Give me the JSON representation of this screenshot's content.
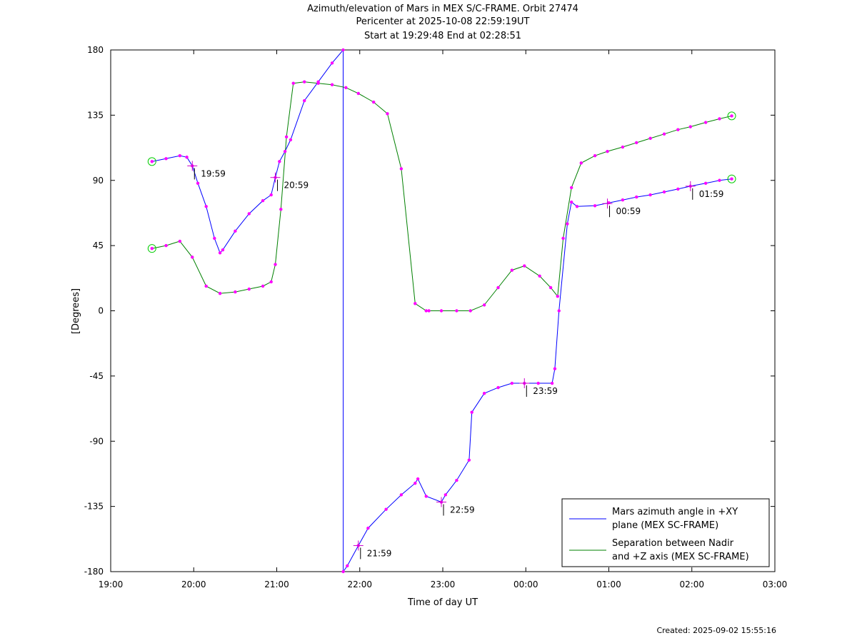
{
  "title_lines": [
    "Azimuth/elevation of Mars in MEX S/C-FRAME.  Orbit 27474",
    "Pericenter at 2025-10-08 22:59:19UT",
    "Start at 19:29:48 End at 02:28:51"
  ],
  "footer": "Created: 2025-09-02 15:55:16",
  "chart_data": {
    "type": "line",
    "xlabel": "Time of day UT",
    "ylabel": "[Degrees]",
    "xlim": [
      19.0,
      27.0
    ],
    "ylim": [
      -180,
      180
    ],
    "x_ticks": [
      {
        "value": 19,
        "label": "19:00"
      },
      {
        "value": 20,
        "label": "20:00"
      },
      {
        "value": 21,
        "label": "21:00"
      },
      {
        "value": 22,
        "label": "22:00"
      },
      {
        "value": 23,
        "label": "23:00"
      },
      {
        "value": 24,
        "label": "00:00"
      },
      {
        "value": 25,
        "label": "01:00"
      },
      {
        "value": 26,
        "label": "02:00"
      },
      {
        "value": 27,
        "label": "03:00"
      }
    ],
    "y_ticks": [
      180,
      135,
      90,
      45,
      0,
      -45,
      -90,
      -135,
      -180
    ],
    "legend_position": "bottom-right",
    "series": [
      {
        "name": "Mars azimuth angle in +XY plane (MEX SC-FRAME)",
        "legend_lines": [
          "Mars azimuth angle in +XY",
          "plane (MEX SC-FRAME)"
        ],
        "color": "#0000ff",
        "x": [
          19.497,
          19.667,
          19.833,
          19.917,
          19.983,
          20.05,
          20.15,
          20.25,
          20.317,
          20.35,
          20.5,
          20.667,
          20.833,
          20.933,
          20.983,
          21.033,
          21.1,
          21.167,
          21.333,
          21.5,
          21.667,
          21.8,
          21.801,
          21.85,
          21.983,
          22.1,
          22.317,
          22.5,
          22.667,
          22.7,
          22.8,
          22.983,
          23.033,
          23.167,
          23.317,
          23.35,
          23.5,
          23.667,
          23.833,
          23.983,
          24.15,
          24.317,
          24.35,
          24.4,
          24.5,
          24.55,
          24.617,
          24.833,
          25.0,
          25.167,
          25.333,
          25.5,
          25.667,
          25.833,
          25.983,
          26.167,
          26.333,
          26.48
        ],
        "y": [
          103,
          105,
          107,
          106,
          100,
          88,
          72,
          50,
          40,
          42,
          55,
          67,
          76,
          80,
          92,
          103,
          110,
          118,
          145,
          158,
          171,
          180,
          -180,
          -176,
          -162,
          -150,
          -137,
          -127,
          -119,
          -116,
          -128,
          -132,
          -127,
          -117,
          -103,
          -70,
          -57,
          -53,
          -50,
          -50,
          -50,
          -50,
          -40,
          0,
          60,
          75,
          72,
          72.5,
          74.5,
          76.5,
          78.5,
          80,
          82,
          84,
          86,
          88,
          90,
          91
        ]
      },
      {
        "name": "Separation between Nadir and +Z axis (MEX SC-FRAME)",
        "legend_lines": [
          "Separation between Nadir",
          "and +Z axis (MEX SC-FRAME)"
        ],
        "color": "#008000",
        "x": [
          19.497,
          19.667,
          19.833,
          19.983,
          20.15,
          20.317,
          20.5,
          20.667,
          20.833,
          20.933,
          20.983,
          21.05,
          21.117,
          21.2,
          21.333,
          21.5,
          21.667,
          21.833,
          21.983,
          22.167,
          22.333,
          22.5,
          22.667,
          22.8,
          22.833,
          22.983,
          23.167,
          23.333,
          23.5,
          23.667,
          23.833,
          23.983,
          24.167,
          24.3,
          24.383,
          24.45,
          24.55,
          24.667,
          24.833,
          24.983,
          25.167,
          25.333,
          25.5,
          25.667,
          25.833,
          25.983,
          26.167,
          26.333,
          26.48
        ],
        "y": [
          43,
          45,
          48,
          37,
          17,
          12,
          13,
          15,
          17,
          20,
          32,
          70,
          120,
          157,
          158,
          157,
          156,
          154,
          150,
          144,
          136,
          98,
          5,
          0,
          0,
          0,
          0,
          0,
          4,
          16,
          28,
          31,
          24,
          16,
          10,
          50,
          85,
          102,
          107,
          110,
          113,
          116,
          119,
          122,
          125,
          127,
          130,
          132.5,
          134.5
        ]
      }
    ],
    "hour_markers": [
      {
        "label": "19:59",
        "x": 19.983,
        "y": 100
      },
      {
        "label": "20:59",
        "x": 20.983,
        "y": 92
      },
      {
        "label": "21:59",
        "x": 21.983,
        "y": -162
      },
      {
        "label": "22:59",
        "x": 22.983,
        "y": -132
      },
      {
        "label": "23:59",
        "x": 23.983,
        "y": -50
      },
      {
        "label": "00:59",
        "x": 24.983,
        "y": 74
      },
      {
        "label": "01:59",
        "x": 25.983,
        "y": 86
      }
    ]
  }
}
